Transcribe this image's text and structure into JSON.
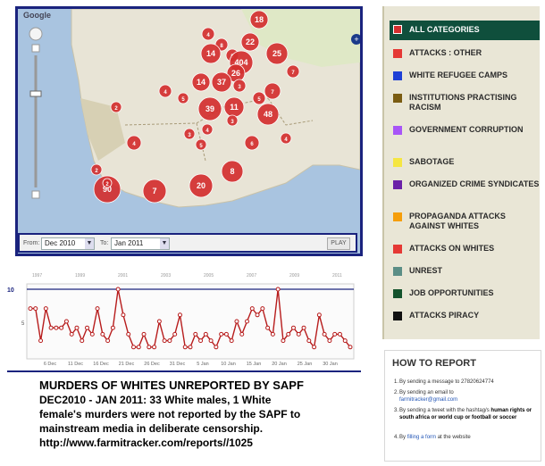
{
  "map": {
    "markers": [
      {
        "label": "18"
      },
      {
        "label": "4"
      },
      {
        "label": "22"
      },
      {
        "label": "8"
      },
      {
        "label": "14"
      },
      {
        "label": "5"
      },
      {
        "label": "25"
      },
      {
        "label": "404"
      },
      {
        "label": "26"
      },
      {
        "label": "14"
      },
      {
        "label": "37"
      },
      {
        "label": "7"
      },
      {
        "label": "3"
      },
      {
        "label": "7"
      },
      {
        "label": "5"
      },
      {
        "label": "39"
      },
      {
        "label": "11"
      },
      {
        "label": "48"
      },
      {
        "label": "4"
      },
      {
        "label": "5"
      },
      {
        "label": "4"
      },
      {
        "label": "90"
      },
      {
        "label": "7"
      },
      {
        "label": "20"
      },
      {
        "label": "8"
      },
      {
        "label": "2"
      },
      {
        "label": "2"
      },
      {
        "label": "3"
      },
      {
        "label": "4"
      },
      {
        "label": "6"
      },
      {
        "label": "5"
      },
      {
        "label": "3"
      },
      {
        "label": "4"
      },
      {
        "label": "2"
      }
    ],
    "marker_color": "#d32f2f",
    "expand_icon": "plus-icon",
    "logo": "Google"
  },
  "filter": {
    "from_label": "From:",
    "from_value": "Dec 2010",
    "to_label": "To:",
    "to_value": "Jan 2011",
    "play_label": "PLAY"
  },
  "timeline": {
    "y_max_label": "10",
    "y_mid_label": "5",
    "x_labels": [
      "6 Dec",
      "11 Dec",
      "16 Dec",
      "21 Dec",
      "26 Dec",
      "31 Dec",
      "5 Jan",
      "10 Jan",
      "15 Jan",
      "20 Jan",
      "25 Jan",
      "30 Jan"
    ],
    "top_labels": [
      "1997",
      "1999",
      "2001",
      "2003",
      "2005",
      "2007",
      "2009",
      "2011"
    ],
    "values": [
      7,
      7,
      2,
      7,
      4,
      4,
      4,
      5,
      3,
      4,
      2,
      4,
      3,
      7,
      3,
      2,
      4,
      10,
      6,
      3,
      1,
      1,
      3,
      1,
      1,
      5,
      2,
      2,
      3,
      6,
      1,
      1,
      3,
      2,
      3,
      2,
      1,
      3,
      3,
      2,
      5,
      3,
      5,
      7,
      6,
      7,
      4,
      3,
      10,
      2,
      3,
      4,
      3,
      4,
      2,
      1,
      6,
      3,
      2,
      3,
      3,
      2,
      1
    ],
    "line_color": "#b71c1c"
  },
  "caption": {
    "headline": "MURDERS OF WHITES UNREPORTED BY SAPF",
    "line1": "DEC2010 - JAN 2011: 33 White males, 1 White",
    "line2": "female's murders were not reported by the SAPF to",
    "line3": "mainstream media in deliberate censorship.",
    "line4": "http://www.farmitracker.com/reports//1025"
  },
  "categories": [
    {
      "label": "ALL CATEGORIES",
      "color": "#d32f2f"
    },
    {
      "label": "ATTACKS : OTHER",
      "color": "#e53935"
    },
    {
      "label": "WHITE REFUGEE CAMPS",
      "color": "#1e40d6"
    },
    {
      "label": "INSTITUTIONS PRACTISING RACISM",
      "color": "#7a5c12"
    },
    {
      "label": "GOVERNMENT CORRUPTION",
      "color": "#a855f7"
    },
    {
      "label": "SABOTAGE",
      "color": "#f5e642"
    },
    {
      "label": "ORGANIZED CRIME SYNDICATES",
      "color": "#6b21a8"
    },
    {
      "label": "PROPAGANDA ATTACKS AGAINST WHITES",
      "color": "#f59e0b"
    },
    {
      "label": "ATTACKS ON WHITES",
      "color": "#e53935"
    },
    {
      "label": "UNREST",
      "color": "#5b8e86"
    },
    {
      "label": "JOB OPPORTUNITIES",
      "color": "#14532d"
    },
    {
      "label": "ATTACKS PIRACY",
      "color": "#111111"
    }
  ],
  "report": {
    "title": "HOW TO REPORT",
    "items": [
      {
        "num": "1.",
        "text": "By sending a message to 27820624774"
      },
      {
        "num": "2.",
        "text": "By sending an email to",
        "link": "farmitracker@gmail.com"
      },
      {
        "num": "3.",
        "text": "By sending a tweet with the hashtag/s",
        "bold": "human rights or south africa or world cup or football or soccer"
      },
      {
        "num": "4.",
        "text": "By",
        "link": "filling a form",
        "tail": "at the website"
      }
    ]
  }
}
